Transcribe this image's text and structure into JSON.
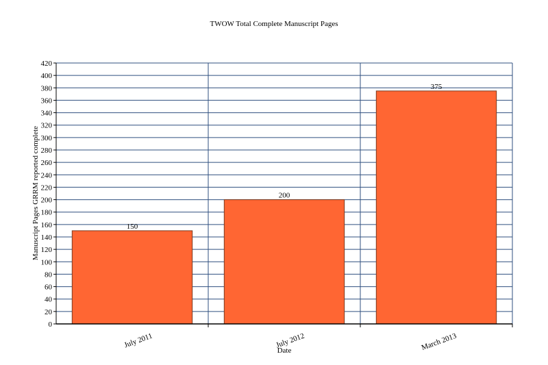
{
  "chart_data": {
    "type": "bar",
    "title": "TWOW Total Complete Manuscript Pages",
    "x_label": "Date",
    "y_label": "Manuscript Pages GRRM reported complete",
    "categories": [
      "July 2011",
      "July 2012",
      "March 2013"
    ],
    "values": [
      150,
      200,
      375
    ],
    "color": "#ff6633",
    "ylim": [
      0,
      420
    ],
    "yticks": [
      0,
      20,
      40,
      60,
      80,
      100,
      120,
      140,
      160,
      180,
      200,
      220,
      240,
      260,
      280,
      300,
      320,
      340,
      360,
      380,
      400,
      420
    ],
    "grid": true
  }
}
